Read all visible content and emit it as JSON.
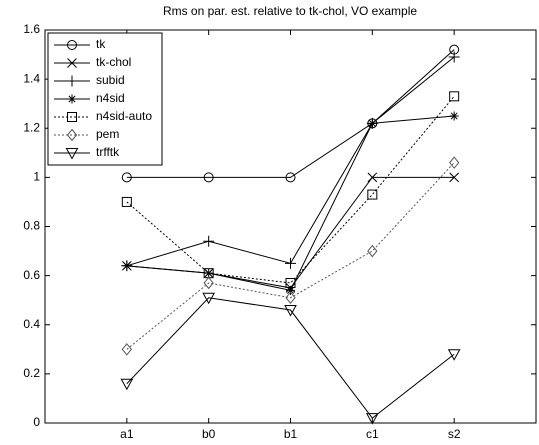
{
  "chart_data": {
    "type": "line",
    "title": "Rms on par. est. relative to tk-chol, VO example",
    "categories": [
      "a1",
      "b0",
      "b1",
      "c1",
      "s2"
    ],
    "series": [
      {
        "name": "tk",
        "color": "#000000",
        "marker": "circle",
        "dash": "solid",
        "values": [
          1.0,
          1.0,
          1.0,
          1.22,
          1.52
        ]
      },
      {
        "name": "tk-chol",
        "color": "#000000",
        "marker": "x",
        "dash": "solid",
        "values": [
          0.64,
          0.61,
          0.55,
          1.0,
          1.0
        ]
      },
      {
        "name": "subid",
        "color": "#000000",
        "marker": "plus",
        "dash": "solid",
        "values": [
          0.64,
          0.74,
          0.65,
          1.22,
          1.49
        ]
      },
      {
        "name": "n4sid",
        "color": "#000000",
        "marker": "star",
        "dash": "solid",
        "values": [
          0.64,
          0.61,
          0.54,
          1.22,
          1.25
        ]
      },
      {
        "name": "n4sid-auto",
        "color": "#000000",
        "marker": "square",
        "dash": "dotted",
        "values": [
          0.9,
          0.61,
          0.57,
          0.93,
          1.33
        ]
      },
      {
        "name": "pem",
        "color": "#555555",
        "marker": "diamond",
        "dash": "dotted",
        "values": [
          0.3,
          0.57,
          0.51,
          0.7,
          1.06
        ]
      },
      {
        "name": "trfftk",
        "color": "#000000",
        "marker": "triangle-down",
        "dash": "solid",
        "values": [
          0.16,
          0.51,
          0.46,
          0.02,
          0.28
        ]
      }
    ],
    "ylim": [
      0,
      1.6
    ],
    "yticks": [
      0,
      0.2,
      0.4,
      0.6,
      0.8,
      1,
      1.2,
      1.4,
      1.6
    ],
    "grid": false,
    "legend": "upper-left"
  }
}
